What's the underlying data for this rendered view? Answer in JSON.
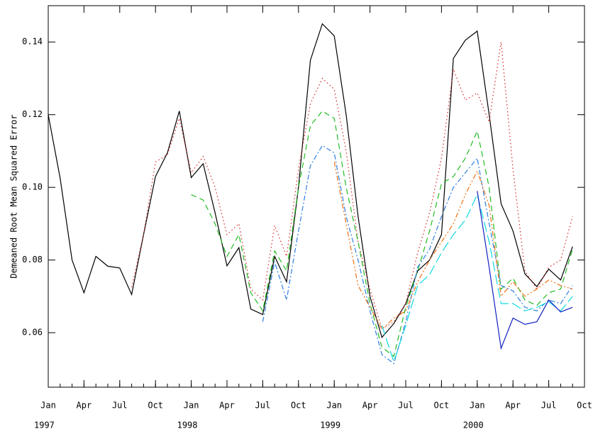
{
  "chart_data": {
    "type": "line",
    "y_label": "Demeaned Root Mean Squared Error",
    "x": [
      "1997-01",
      "1997-02",
      "1997-03",
      "1997-04",
      "1997-05",
      "1997-06",
      "1997-07",
      "1997-08",
      "1997-09",
      "1997-10",
      "1997-11",
      "1997-12",
      "1998-01",
      "1998-02",
      "1998-03",
      "1998-04",
      "1998-05",
      "1998-06",
      "1998-07",
      "1998-08",
      "1998-09",
      "1998-10",
      "1998-11",
      "1998-12",
      "1999-01",
      "1999-02",
      "1999-03",
      "1999-04",
      "1999-05",
      "1999-06",
      "1999-07",
      "1999-08",
      "1999-09",
      "1999-10",
      "1999-11",
      "1999-12",
      "2000-01",
      "2000-02",
      "2000-03",
      "2000-04",
      "2000-05",
      "2000-06",
      "2000-07",
      "2000-08",
      "2000-09"
    ],
    "xlim": [
      "1997-01",
      "2000-10"
    ],
    "xticks": [
      {
        "value": "1997-01",
        "label": "Jan"
      },
      {
        "value": "1997-04",
        "label": "Apr"
      },
      {
        "value": "1997-07",
        "label": "Jul"
      },
      {
        "value": "1997-10",
        "label": "Oct"
      },
      {
        "value": "1998-01",
        "label": "Jan"
      },
      {
        "value": "1998-04",
        "label": "Apr"
      },
      {
        "value": "1998-07",
        "label": "Jul"
      },
      {
        "value": "1998-10",
        "label": "Oct"
      },
      {
        "value": "1999-01",
        "label": "Jan"
      },
      {
        "value": "1999-04",
        "label": "Apr"
      },
      {
        "value": "1999-07",
        "label": "Jul"
      },
      {
        "value": "1999-10",
        "label": "Oct"
      },
      {
        "value": "2000-01",
        "label": "Jan"
      },
      {
        "value": "2000-04",
        "label": "Apr"
      },
      {
        "value": "2000-07",
        "label": "Jul"
      },
      {
        "value": "2000-10",
        "label": "Oct"
      }
    ],
    "year_labels": [
      {
        "value": "1997-01",
        "label": "1997"
      },
      {
        "value": "1998-01",
        "label": "1998"
      },
      {
        "value": "1999-01",
        "label": "1999"
      },
      {
        "value": "2000-01",
        "label": "2000"
      }
    ],
    "ylim": [
      0.045,
      0.15
    ],
    "yticks": [
      {
        "value": 0.06,
        "label": "0.06"
      },
      {
        "value": 0.08,
        "label": "0.08"
      },
      {
        "value": 0.1,
        "label": "0.10"
      },
      {
        "value": 0.12,
        "label": "0.12"
      },
      {
        "value": 0.14,
        "label": "0.14"
      }
    ],
    "series": [
      {
        "color": "#000000",
        "style": "solid",
        "values": [
          0.12,
          0.1025,
          0.08,
          0.071,
          0.081,
          0.0783,
          0.0778,
          0.0705,
          0.087,
          0.103,
          0.1095,
          0.121,
          0.1027,
          0.1065,
          0.093,
          0.0784,
          0.0834,
          0.0665,
          0.065,
          0.081,
          0.074,
          0.1,
          0.135,
          0.145,
          0.1417,
          0.12,
          0.092,
          0.07,
          0.0587,
          0.0625,
          0.068,
          0.077,
          0.08,
          0.087,
          0.1355,
          0.1405,
          0.143,
          0.12,
          0.0955,
          0.088,
          0.0762,
          0.0727,
          0.0775,
          0.0745,
          0.0837
        ]
      },
      {
        "color": "#d62020",
        "style": "dotted",
        "values": [
          null,
          null,
          null,
          null,
          null,
          null,
          null,
          0.0725,
          0.087,
          0.107,
          0.109,
          0.119,
          0.104,
          0.1085,
          0.1,
          0.087,
          0.09,
          0.072,
          0.069,
          0.0895,
          0.081,
          0.105,
          0.123,
          0.13,
          0.127,
          0.11,
          0.085,
          0.072,
          0.061,
          0.063,
          0.068,
          0.082,
          0.093,
          0.108,
          0.1325,
          0.124,
          0.126,
          0.118,
          0.14,
          0.105,
          0.077,
          0.072,
          0.078,
          0.08,
          0.092
        ]
      },
      {
        "color": "#22bb22",
        "style": "dashed",
        "values": [
          null,
          null,
          null,
          null,
          null,
          null,
          null,
          null,
          null,
          null,
          null,
          null,
          0.098,
          0.0965,
          0.09,
          0.081,
          0.087,
          0.071,
          0.066,
          0.0825,
          0.077,
          0.1,
          0.117,
          0.121,
          0.119,
          0.1,
          0.085,
          0.068,
          0.056,
          0.0535,
          0.067,
          0.077,
          0.088,
          0.101,
          0.103,
          0.108,
          0.1155,
          0.1,
          0.072,
          0.075,
          0.069,
          0.0675,
          0.071,
          0.072,
          0.083
        ]
      },
      {
        "color": "#2f7fe0",
        "style": "dashdot",
        "values": [
          null,
          null,
          null,
          null,
          null,
          null,
          null,
          null,
          null,
          null,
          null,
          null,
          null,
          null,
          null,
          null,
          null,
          null,
          0.063,
          0.0795,
          0.069,
          0.088,
          0.106,
          0.1115,
          0.1095,
          0.092,
          0.08,
          0.066,
          0.054,
          0.0515,
          0.063,
          0.078,
          0.083,
          0.092,
          0.1,
          0.104,
          0.108,
          0.09,
          0.073,
          0.0715,
          0.067,
          0.066,
          0.069,
          0.068,
          0.073
        ]
      },
      {
        "color": "#f07010",
        "style": "dashdotdot",
        "values": [
          null,
          null,
          null,
          null,
          null,
          null,
          null,
          null,
          null,
          null,
          null,
          null,
          null,
          null,
          null,
          null,
          null,
          null,
          null,
          null,
          null,
          null,
          null,
          null,
          0.107,
          0.09,
          0.073,
          0.067,
          0.061,
          0.064,
          0.066,
          0.074,
          0.08,
          0.085,
          0.09,
          0.098,
          0.1045,
          0.095,
          0.07,
          0.074,
          0.07,
          0.072,
          0.0745,
          0.073,
          0.072
        ]
      },
      {
        "color": "#10d8e0",
        "style": "longdash",
        "values": [
          null,
          null,
          null,
          null,
          null,
          null,
          null,
          null,
          null,
          null,
          null,
          null,
          null,
          null,
          null,
          null,
          null,
          null,
          null,
          null,
          null,
          null,
          null,
          null,
          null,
          null,
          null,
          null,
          0.062,
          0.052,
          0.062,
          0.073,
          0.076,
          0.082,
          0.087,
          0.091,
          0.098,
          0.085,
          0.068,
          0.068,
          0.066,
          0.067,
          0.0685,
          0.066,
          0.07
        ]
      },
      {
        "color": "#1020c0",
        "style": "solid",
        "values": [
          null,
          null,
          null,
          null,
          null,
          null,
          null,
          null,
          null,
          null,
          null,
          null,
          null,
          null,
          null,
          null,
          null,
          null,
          null,
          null,
          null,
          null,
          null,
          null,
          null,
          null,
          null,
          null,
          null,
          null,
          null,
          null,
          null,
          null,
          null,
          null,
          0.099,
          0.078,
          0.0557,
          0.064,
          0.0623,
          0.063,
          0.069,
          0.0657,
          0.067
        ]
      }
    ]
  }
}
